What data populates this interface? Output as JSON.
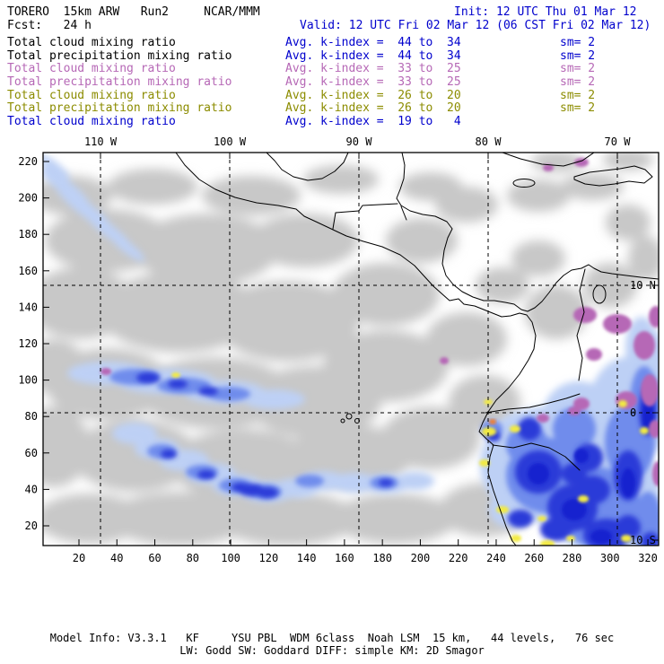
{
  "title_bar": {
    "model_line_left": "TORERO  15km ARW   Run2     NCAR/MMM",
    "model_line_right": "Init: 12 UTC Thu 01 Mar 12",
    "fcst_line_left": "Fcst:   24 h",
    "fcst_line_right": "Valid: 12 UTC Fri 02 Mar 12 (06 CST Fri 02 Mar 12)"
  },
  "legend_rows": [
    {
      "label": "Total cloud mixing ratio",
      "stat": "Avg. k-index =  44 to  34",
      "sm": "sm= 2",
      "label_color": "#000000",
      "stat_color": "#0000cd"
    },
    {
      "label": "Total precipitation mixing ratio",
      "stat": "Avg. k-index =  44 to  34",
      "sm": "sm= 2",
      "label_color": "#000000",
      "stat_color": "#0000cd"
    },
    {
      "label": "Total cloud mixing ratio",
      "stat": "Avg. k-index =  33 to  25",
      "sm": "sm= 2",
      "label_color": "#b668b6",
      "stat_color": "#b668b6"
    },
    {
      "label": "Total precipitation mixing ratio",
      "stat": "Avg. k-index =  33 to  25",
      "sm": "sm= 2",
      "label_color": "#b668b6",
      "stat_color": "#b668b6"
    },
    {
      "label": "Total cloud mixing ratio",
      "stat": "Avg. k-index =  26 to  20",
      "sm": "sm= 2",
      "label_color": "#8c8c00",
      "stat_color": "#8c8c00"
    },
    {
      "label": "Total precipitation mixing ratio",
      "stat": "Avg. k-index =  26 to  20",
      "sm": "sm= 2",
      "label_color": "#8c8c00",
      "stat_color": "#8c8c00"
    },
    {
      "label": "Total cloud mixing ratio",
      "stat": "Avg. k-index =  19 to   4",
      "sm": "",
      "label_color": "#0000cd",
      "stat_color": "#0000cd"
    }
  ],
  "map_plot": {
    "axes": {
      "top": {
        "labels": [
          "110 W",
          "100 W",
          "90 W",
          "80 W",
          "70 W"
        ]
      },
      "bottom": {
        "labels": [
          "20",
          "40",
          "60",
          "80",
          "100",
          "120",
          "140",
          "160",
          "180",
          "200",
          "220",
          "240",
          "260",
          "280",
          "300",
          "320"
        ]
      },
      "left": {
        "labels": [
          "220",
          "200",
          "180",
          "160",
          "140",
          "120",
          "100",
          "80",
          "60",
          "40",
          "20"
        ]
      },
      "right": {
        "labels": [
          "10 N",
          "0",
          "10 S"
        ]
      }
    }
  },
  "footer": {
    "line1": "Model Info: V3.3.1   KF     YSU PBL  WDM 6class  Noah LSM  15 km,   44 levels,   76 sec",
    "line2": "LW: Godd SW: Goddard DIFF: simple KM: 2D Smagor"
  },
  "colors": {
    "text_black": "#000000",
    "text_blue": "#0000cd",
    "text_orchid": "#b668b6",
    "text_olive": "#8c8c00",
    "cloud_gray": "#c8c8c8",
    "cloud_blue_light": "#bdd0f5",
    "cloud_blue_mid": "#6f8cec",
    "cloud_blue_deep": "#2b3bd8",
    "cloud_blue_bright": "#1520cf",
    "precip_purple": "#b668b6",
    "precip_yellow": "#f2ea43",
    "precip_orange": "#f08030"
  }
}
